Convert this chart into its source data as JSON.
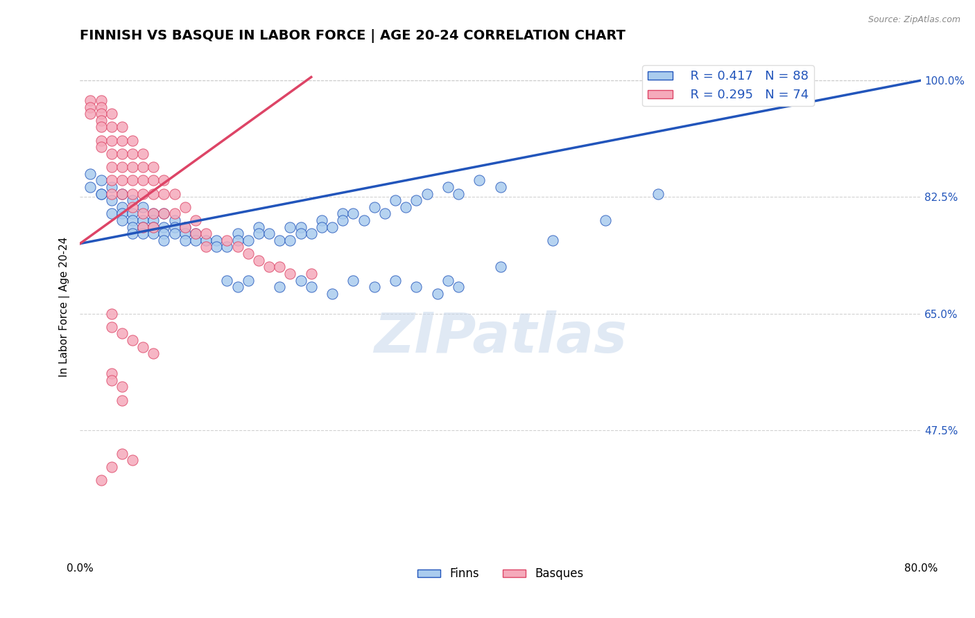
{
  "title": "FINNISH VS BASQUE IN LABOR FORCE | AGE 20-24 CORRELATION CHART",
  "source_text": "Source: ZipAtlas.com",
  "ylabel": "In Labor Force | Age 20-24",
  "xlim": [
    0.0,
    0.8
  ],
  "ylim": [
    0.28,
    1.04
  ],
  "yticks": [
    0.475,
    0.65,
    0.825,
    1.0
  ],
  "ytick_labels": [
    "47.5%",
    "65.0%",
    "82.5%",
    "100.0%"
  ],
  "xticks": [
    0.0,
    0.1,
    0.2,
    0.3,
    0.4,
    0.5,
    0.6,
    0.7,
    0.8
  ],
  "finn_color": "#aaccee",
  "basque_color": "#f5aabb",
  "finn_line_color": "#2255bb",
  "basque_line_color": "#dd4466",
  "finn_R": 0.417,
  "finn_N": 88,
  "basque_R": 0.295,
  "basque_N": 74,
  "watermark_text": "ZIPatlas",
  "title_fontsize": 14,
  "axis_label_fontsize": 11,
  "tick_fontsize": 11,
  "legend_fontsize": 13,
  "finn_line_x0": 0.0,
  "finn_line_y0": 0.755,
  "finn_line_x1": 0.8,
  "finn_line_y1": 1.0,
  "basque_line_x0": 0.0,
  "basque_line_y0": 0.755,
  "basque_line_x1": 0.22,
  "basque_line_y1": 1.005,
  "finn_dots": [
    [
      0.01,
      0.84
    ],
    [
      0.01,
      0.86
    ],
    [
      0.02,
      0.83
    ],
    [
      0.02,
      0.85
    ],
    [
      0.02,
      0.83
    ],
    [
      0.03,
      0.84
    ],
    [
      0.03,
      0.82
    ],
    [
      0.03,
      0.8
    ],
    [
      0.04,
      0.83
    ],
    [
      0.04,
      0.81
    ],
    [
      0.04,
      0.8
    ],
    [
      0.04,
      0.79
    ],
    [
      0.05,
      0.82
    ],
    [
      0.05,
      0.8
    ],
    [
      0.05,
      0.79
    ],
    [
      0.05,
      0.78
    ],
    [
      0.05,
      0.77
    ],
    [
      0.06,
      0.81
    ],
    [
      0.06,
      0.79
    ],
    [
      0.06,
      0.78
    ],
    [
      0.06,
      0.77
    ],
    [
      0.07,
      0.8
    ],
    [
      0.07,
      0.79
    ],
    [
      0.07,
      0.78
    ],
    [
      0.07,
      0.77
    ],
    [
      0.08,
      0.8
    ],
    [
      0.08,
      0.78
    ],
    [
      0.08,
      0.77
    ],
    [
      0.08,
      0.76
    ],
    [
      0.09,
      0.79
    ],
    [
      0.09,
      0.78
    ],
    [
      0.09,
      0.77
    ],
    [
      0.1,
      0.78
    ],
    [
      0.1,
      0.77
    ],
    [
      0.1,
      0.76
    ],
    [
      0.11,
      0.77
    ],
    [
      0.11,
      0.76
    ],
    [
      0.12,
      0.76
    ],
    [
      0.13,
      0.76
    ],
    [
      0.13,
      0.75
    ],
    [
      0.14,
      0.75
    ],
    [
      0.15,
      0.77
    ],
    [
      0.15,
      0.76
    ],
    [
      0.16,
      0.76
    ],
    [
      0.17,
      0.78
    ],
    [
      0.17,
      0.77
    ],
    [
      0.18,
      0.77
    ],
    [
      0.19,
      0.76
    ],
    [
      0.2,
      0.78
    ],
    [
      0.2,
      0.76
    ],
    [
      0.21,
      0.78
    ],
    [
      0.21,
      0.77
    ],
    [
      0.22,
      0.77
    ],
    [
      0.23,
      0.79
    ],
    [
      0.23,
      0.78
    ],
    [
      0.24,
      0.78
    ],
    [
      0.25,
      0.8
    ],
    [
      0.25,
      0.79
    ],
    [
      0.26,
      0.8
    ],
    [
      0.27,
      0.79
    ],
    [
      0.28,
      0.81
    ],
    [
      0.29,
      0.8
    ],
    [
      0.3,
      0.82
    ],
    [
      0.31,
      0.81
    ],
    [
      0.32,
      0.82
    ],
    [
      0.33,
      0.83
    ],
    [
      0.35,
      0.84
    ],
    [
      0.36,
      0.83
    ],
    [
      0.38,
      0.85
    ],
    [
      0.4,
      0.84
    ],
    [
      0.14,
      0.7
    ],
    [
      0.15,
      0.69
    ],
    [
      0.16,
      0.7
    ],
    [
      0.19,
      0.69
    ],
    [
      0.21,
      0.7
    ],
    [
      0.22,
      0.69
    ],
    [
      0.24,
      0.68
    ],
    [
      0.26,
      0.7
    ],
    [
      0.28,
      0.69
    ],
    [
      0.3,
      0.7
    ],
    [
      0.32,
      0.69
    ],
    [
      0.34,
      0.68
    ],
    [
      0.35,
      0.7
    ],
    [
      0.36,
      0.69
    ],
    [
      0.4,
      0.72
    ],
    [
      0.45,
      0.76
    ],
    [
      0.5,
      0.79
    ],
    [
      0.55,
      0.83
    ]
  ],
  "basque_dots": [
    [
      0.01,
      0.97
    ],
    [
      0.01,
      0.96
    ],
    [
      0.01,
      0.95
    ],
    [
      0.02,
      0.97
    ],
    [
      0.02,
      0.96
    ],
    [
      0.02,
      0.95
    ],
    [
      0.02,
      0.94
    ],
    [
      0.02,
      0.93
    ],
    [
      0.02,
      0.91
    ],
    [
      0.02,
      0.9
    ],
    [
      0.03,
      0.95
    ],
    [
      0.03,
      0.93
    ],
    [
      0.03,
      0.91
    ],
    [
      0.03,
      0.89
    ],
    [
      0.03,
      0.87
    ],
    [
      0.03,
      0.85
    ],
    [
      0.03,
      0.83
    ],
    [
      0.04,
      0.93
    ],
    [
      0.04,
      0.91
    ],
    [
      0.04,
      0.89
    ],
    [
      0.04,
      0.87
    ],
    [
      0.04,
      0.85
    ],
    [
      0.04,
      0.83
    ],
    [
      0.05,
      0.91
    ],
    [
      0.05,
      0.89
    ],
    [
      0.05,
      0.87
    ],
    [
      0.05,
      0.85
    ],
    [
      0.05,
      0.83
    ],
    [
      0.05,
      0.81
    ],
    [
      0.06,
      0.89
    ],
    [
      0.06,
      0.87
    ],
    [
      0.06,
      0.85
    ],
    [
      0.06,
      0.83
    ],
    [
      0.06,
      0.8
    ],
    [
      0.06,
      0.78
    ],
    [
      0.07,
      0.87
    ],
    [
      0.07,
      0.85
    ],
    [
      0.07,
      0.83
    ],
    [
      0.07,
      0.8
    ],
    [
      0.07,
      0.78
    ],
    [
      0.08,
      0.85
    ],
    [
      0.08,
      0.83
    ],
    [
      0.08,
      0.8
    ],
    [
      0.09,
      0.83
    ],
    [
      0.09,
      0.8
    ],
    [
      0.1,
      0.81
    ],
    [
      0.1,
      0.78
    ],
    [
      0.11,
      0.79
    ],
    [
      0.11,
      0.77
    ],
    [
      0.12,
      0.77
    ],
    [
      0.12,
      0.75
    ],
    [
      0.14,
      0.76
    ],
    [
      0.15,
      0.75
    ],
    [
      0.16,
      0.74
    ],
    [
      0.17,
      0.73
    ],
    [
      0.18,
      0.72
    ],
    [
      0.19,
      0.72
    ],
    [
      0.2,
      0.71
    ],
    [
      0.22,
      0.71
    ],
    [
      0.03,
      0.65
    ],
    [
      0.03,
      0.63
    ],
    [
      0.04,
      0.62
    ],
    [
      0.05,
      0.61
    ],
    [
      0.06,
      0.6
    ],
    [
      0.07,
      0.59
    ],
    [
      0.03,
      0.56
    ],
    [
      0.03,
      0.55
    ],
    [
      0.04,
      0.54
    ],
    [
      0.04,
      0.52
    ],
    [
      0.02,
      0.4
    ],
    [
      0.03,
      0.42
    ],
    [
      0.04,
      0.44
    ],
    [
      0.05,
      0.43
    ]
  ]
}
